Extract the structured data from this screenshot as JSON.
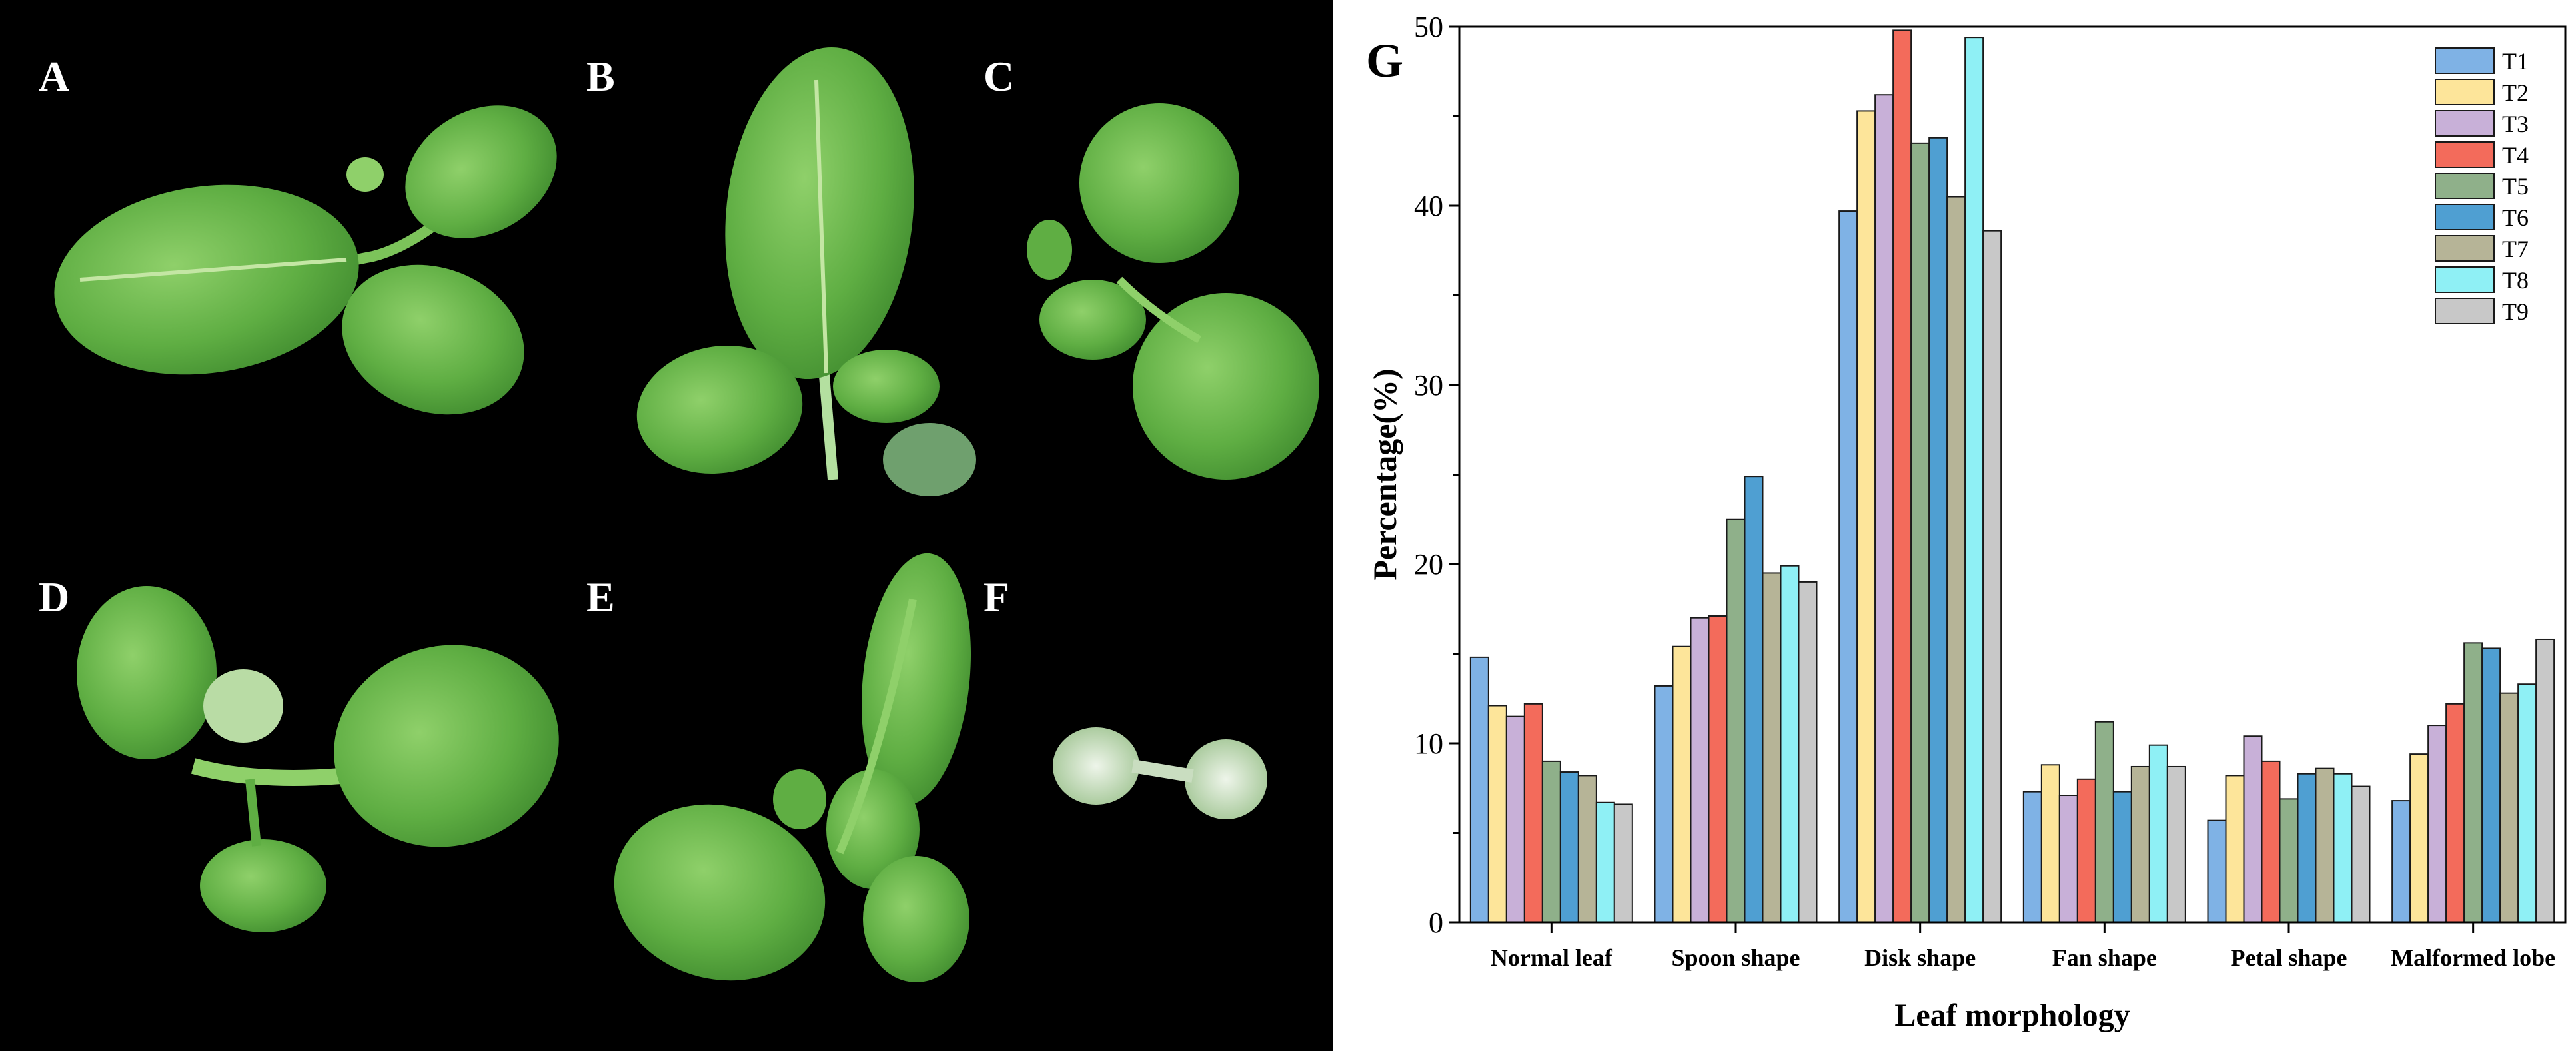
{
  "panels": {
    "labels": [
      "A",
      "B",
      "C",
      "D",
      "E",
      "F"
    ]
  },
  "colors": {
    "leaf_dark": "#3f8a2e",
    "leaf_mid": "#5fae43",
    "leaf_light": "#8fd06a",
    "leaf_vein": "#c4e6a4",
    "pale_leaf": "#dbe8d6"
  },
  "chart_data": {
    "type": "bar",
    "panel_label": "G",
    "categories": [
      "Normal leaf",
      "Spoon shape",
      "Disk shape",
      "Fan shape",
      "Petal shape",
      "Malformed lobe"
    ],
    "xlabel": "Leaf morphology",
    "ylabel": "Percentage(%)",
    "ylim": [
      0,
      50
    ],
    "yticks": [
      0,
      10,
      20,
      30,
      40,
      50
    ],
    "legend_position": "top-right",
    "grid": false,
    "series": [
      {
        "name": "T1",
        "color": "#7fb2e5",
        "values": [
          14.8,
          13.2,
          39.7,
          7.3,
          5.7,
          6.8
        ]
      },
      {
        "name": "T2",
        "color": "#fde59a",
        "values": [
          12.1,
          15.4,
          45.3,
          8.8,
          8.2,
          9.4
        ]
      },
      {
        "name": "T3",
        "color": "#c8b0d8",
        "values": [
          11.5,
          17.0,
          46.2,
          7.1,
          10.4,
          11.0
        ]
      },
      {
        "name": "T4",
        "color": "#f36b5b",
        "values": [
          12.2,
          17.1,
          49.8,
          8.0,
          9.0,
          12.2
        ]
      },
      {
        "name": "T5",
        "color": "#8fb08a",
        "values": [
          9.0,
          22.5,
          43.5,
          11.2,
          6.9,
          15.6
        ]
      },
      {
        "name": "T6",
        "color": "#4f9fd2",
        "values": [
          8.4,
          24.9,
          43.8,
          7.3,
          8.3,
          15.3
        ]
      },
      {
        "name": "T7",
        "color": "#b6b497",
        "values": [
          8.2,
          19.5,
          40.5,
          8.7,
          8.6,
          12.8
        ]
      },
      {
        "name": "T8",
        "color": "#8ff0f5",
        "values": [
          6.7,
          19.9,
          49.4,
          9.9,
          8.3,
          13.3
        ]
      },
      {
        "name": "T9",
        "color": "#c8c8c8",
        "values": [
          6.6,
          19.0,
          38.6,
          8.7,
          7.6,
          15.8
        ]
      }
    ]
  }
}
